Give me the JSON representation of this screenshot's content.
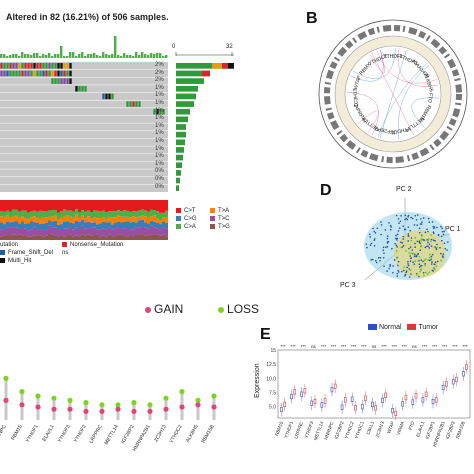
{
  "panelA": {
    "title": "Altered in 82 (16.21%) of 506 samples.",
    "axis_zero": "0",
    "axis_max": "32",
    "percentages": [
      "2%",
      "2%",
      "2%",
      "1%",
      "1%",
      "1%",
      "1%",
      "1%",
      "1%",
      "1%",
      "1%",
      "1%",
      "1%",
      "1%",
      "0%",
      "0%",
      "0%"
    ],
    "snv_legend": [
      {
        "label": "C>T",
        "color": "#e41a1c"
      },
      {
        "label": "T>A",
        "color": "#ff7f00"
      },
      {
        "label": "C>G",
        "color": "#377eb8"
      },
      {
        "label": "T>C",
        "color": "#984ea3"
      },
      {
        "label": "C>A",
        "color": "#4daf4a"
      },
      {
        "label": "T>G",
        "color": "#8c564b"
      }
    ],
    "mutation_legend": [
      {
        "label": "utation",
        "color": "#2e9a3a"
      },
      {
        "label": "Nonsense_Mutation",
        "color": "#d62728"
      },
      {
        "label": "Frame_Shift_Del",
        "color": "#1f5fa8"
      },
      {
        "label": "ns",
        "color": "#7b4fa0"
      },
      {
        "label": "Multi_Hit",
        "color": "#111111"
      }
    ]
  },
  "panelB": {
    "letter": "B",
    "genes": [
      "YTHDF1",
      "YTHDF3",
      "KIAA1429",
      "ALKBH5",
      "FTO",
      "RBM15",
      "METTL14",
      "YTHDC1",
      "IGF2BP2",
      "METTL3",
      "HNRNPC",
      "ZC3H13",
      "WTAP",
      "RBMX",
      "YTHDC2"
    ]
  },
  "panelD": {
    "letter": "D",
    "pc1": "PC 1",
    "pc2": "PC 2",
    "pc3": "PC 3"
  },
  "panelC": {
    "legend": [
      {
        "label": "GAIN",
        "color": "#e0457b"
      },
      {
        "label": "LOSS",
        "color": "#7ed321"
      }
    ],
    "genes": [
      "HNRNPC",
      "RBM15",
      "YTHDF1",
      "ELAVL1",
      "YTHDF3",
      "YTHDF2",
      "LRPPRC",
      "METTL14",
      "IGF2BP2",
      "HNRNPA2B1",
      "ZC3H13",
      "YTHDC2",
      "ALKBH5",
      "RBM15B"
    ]
  },
  "panelE": {
    "letter": "E",
    "legend": [
      {
        "label": "Normal",
        "color": "#2e4fc4"
      },
      {
        "label": "Tumor",
        "color": "#d63a3a"
      }
    ],
    "ylabel": "Expression",
    "yticks": [
      "15",
      "12.5",
      "10.0",
      "7.5",
      "5.0"
    ],
    "sig": [
      "***",
      "***",
      "***",
      "ns",
      "***",
      "***",
      "***",
      "***",
      "***",
      "ns",
      "***",
      "***",
      "***",
      "ns",
      "***",
      "***",
      "***",
      "***",
      "***"
    ],
    "genes": [
      "RBM15",
      "YTHDF1",
      "LRPPRC",
      "YTHDF3",
      "METTL14",
      "HNRNPC",
      "IGF2BP2",
      "YTHDC2",
      "YTHDC1",
      "CBLL1",
      "ZC3H13",
      "WTAP",
      "VIRMA",
      "FTO",
      "ELAVL1",
      "IGF2BP1",
      "HNRNPA2B1",
      "IGF2BP3",
      "RBM15B"
    ]
  },
  "chart_data": [
    {
      "type": "scatter",
      "title": "",
      "xlabel": "PC 1",
      "ylabel": "PC 2",
      "zlabel": "PC 3",
      "series": [
        {
          "name": "",
          "color": "#1f5fa8"
        },
        {
          "name": "",
          "color": "#9fd18a"
        }
      ]
    },
    {
      "type": "bar",
      "title": "",
      "ylabel": "Expression",
      "ylim": [
        3,
        15
      ],
      "categories": [
        "RBM15",
        "YTHDF1",
        "LRPPRC",
        "YTHDF3",
        "METTL14",
        "HNRNPC",
        "IGF2BP2",
        "YTHDC2",
        "YTHDC1",
        "CBLL1",
        "ZC3H13",
        "WTAP",
        "VIRMA",
        "FTO",
        "ELAVL1",
        "IGF2BP1",
        "HNRNPA2B1",
        "IGF2BP3",
        "RBM15B"
      ],
      "series": [
        {
          "name": "Normal",
          "values": [
            4.5,
            6.8,
            7.2,
            5.6,
            5.3,
            8.0,
            4.9,
            6.3,
            5.0,
            5.4,
            6.1,
            4.3,
            5.5,
            5.8,
            6.2,
            5.9,
            8.4,
            9.4,
            10.8
          ]
        },
        {
          "name": "Tumor",
          "values": [
            5.4,
            7.6,
            7.8,
            5.9,
            6.0,
            8.6,
            6.2,
            4.8,
            6.5,
            4.8,
            7.0,
            3.8,
            6.6,
            6.9,
            7.2,
            6.2,
            9.0,
            9.8,
            12.0
          ]
        }
      ]
    }
  ]
}
